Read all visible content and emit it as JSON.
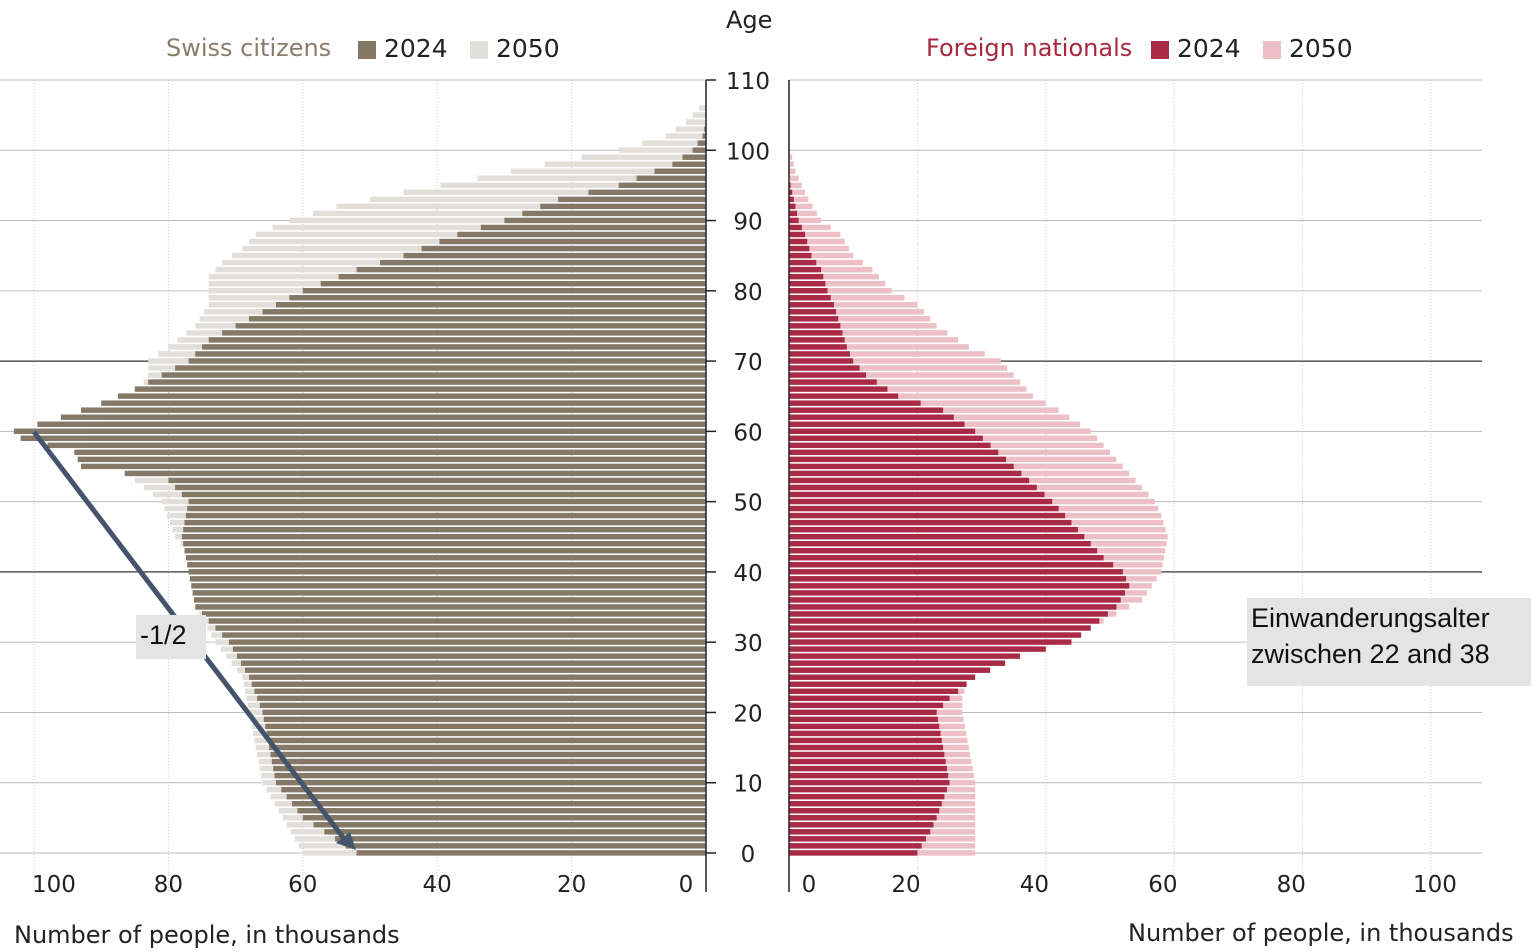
{
  "chart_data": {
    "type": "bar",
    "orientation": "horizontal",
    "center_axis_title": "Age",
    "age_ticks": [
      0,
      10,
      20,
      30,
      40,
      50,
      60,
      70,
      80,
      90,
      100,
      110
    ],
    "x_ticks": [
      0,
      20,
      40,
      60,
      80,
      100
    ],
    "xlim": [
      0,
      100
    ],
    "ylim": [
      0,
      110
    ],
    "grid": true,
    "highlight_ages": [
      40,
      70
    ],
    "panels": [
      {
        "id": "swiss",
        "title": "Swiss citizens",
        "xlabel": "Number of people, in thousands",
        "direction": "left",
        "title_color": "#8a7d6c",
        "series": [
          {
            "name": "2024",
            "color": "#857866",
            "points": [
              [
                0,
                52
              ],
              [
                5,
                60
              ],
              [
                10,
                64
              ],
              [
                15,
                65
              ],
              [
                20,
                66
              ],
              [
                25,
                68
              ],
              [
                30,
                71
              ],
              [
                35,
                76
              ],
              [
                40,
                77
              ],
              [
                45,
                78
              ],
              [
                50,
                77
              ],
              [
                53,
                80
              ],
              [
                55,
                93
              ],
              [
                57,
                94
              ],
              [
                59,
                102
              ],
              [
                60,
                103
              ],
              [
                62,
                96
              ],
              [
                64,
                90
              ],
              [
                66,
                85
              ],
              [
                68,
                81
              ],
              [
                70,
                77
              ],
              [
                73,
                74
              ],
              [
                76,
                68
              ],
              [
                80,
                60
              ],
              [
                83,
                52
              ],
              [
                85,
                45
              ],
              [
                88,
                37
              ],
              [
                90,
                30
              ],
              [
                93,
                22
              ],
              [
                95,
                13
              ],
              [
                98,
                5
              ],
              [
                100,
                2
              ],
              [
                102,
                0.5
              ],
              [
                104,
                0
              ]
            ]
          },
          {
            "name": "2050",
            "color": "#e2dfdb",
            "points": [
              [
                0,
                60
              ],
              [
                5,
                63
              ],
              [
                10,
                66
              ],
              [
                15,
                67
              ],
              [
                20,
                68
              ],
              [
                25,
                69
              ],
              [
                30,
                73
              ],
              [
                35,
                76
              ],
              [
                40,
                75
              ],
              [
                45,
                79
              ],
              [
                50,
                81
              ],
              [
                53,
                85
              ],
              [
                55,
                86
              ],
              [
                58,
                92
              ],
              [
                60,
                92
              ],
              [
                62,
                90
              ],
              [
                65,
                85
              ],
              [
                68,
                83
              ],
              [
                70,
                83
              ],
              [
                72,
                80
              ],
              [
                75,
                76
              ],
              [
                78,
                74
              ],
              [
                80,
                74
              ],
              [
                82,
                74
              ],
              [
                84,
                72
              ],
              [
                86,
                69
              ],
              [
                88,
                67
              ],
              [
                90,
                62
              ],
              [
                92,
                55
              ],
              [
                94,
                45
              ],
              [
                96,
                34
              ],
              [
                98,
                24
              ],
              [
                100,
                13
              ],
              [
                102,
                6
              ],
              [
                104,
                3
              ],
              [
                106,
                1
              ],
              [
                107,
                0
              ]
            ]
          }
        ]
      },
      {
        "id": "foreign",
        "title": "Foreign nationals",
        "xlabel": "Number of people, in thousands",
        "direction": "right",
        "title_color": "#a8283f",
        "series": [
          {
            "name": "2024",
            "color": "#a82a44",
            "points": [
              [
                0,
                20
              ],
              [
                3,
                22
              ],
              [
                5,
                23
              ],
              [
                10,
                25
              ],
              [
                15,
                24
              ],
              [
                20,
                23
              ],
              [
                22,
                25
              ],
              [
                25,
                29
              ],
              [
                28,
                36
              ],
              [
                30,
                44
              ],
              [
                32,
                47
              ],
              [
                35,
                51
              ],
              [
                38,
                53
              ],
              [
                40,
                52
              ],
              [
                42,
                49
              ],
              [
                45,
                46
              ],
              [
                50,
                41
              ],
              [
                55,
                35
              ],
              [
                60,
                29
              ],
              [
                63,
                24
              ],
              [
                65,
                17
              ],
              [
                68,
                12
              ],
              [
                70,
                10
              ],
              [
                72,
                9
              ],
              [
                75,
                8
              ],
              [
                78,
                7
              ],
              [
                80,
                6
              ],
              [
                83,
                5
              ],
              [
                85,
                3.5
              ],
              [
                88,
                2.5
              ],
              [
                90,
                1.5
              ],
              [
                92,
                1
              ],
              [
                94,
                0.5
              ],
              [
                96,
                0
              ]
            ]
          },
          {
            "name": "2050",
            "color": "#ecc0c6",
            "points": [
              [
                0,
                29
              ],
              [
                5,
                29
              ],
              [
                10,
                29
              ],
              [
                15,
                28
              ],
              [
                20,
                27
              ],
              [
                22,
                27
              ],
              [
                25,
                28
              ],
              [
                28,
                34
              ],
              [
                30,
                41
              ],
              [
                33,
                49
              ],
              [
                36,
                55
              ],
              [
                40,
                58
              ],
              [
                45,
                59
              ],
              [
                48,
                58
              ],
              [
                50,
                57
              ],
              [
                55,
                52
              ],
              [
                60,
                47
              ],
              [
                63,
                42
              ],
              [
                65,
                38
              ],
              [
                68,
                35
              ],
              [
                70,
                33
              ],
              [
                72,
                28
              ],
              [
                75,
                23
              ],
              [
                78,
                20
              ],
              [
                80,
                16
              ],
              [
                83,
                13
              ],
              [
                85,
                10
              ],
              [
                88,
                8
              ],
              [
                90,
                5
              ],
              [
                93,
                3
              ],
              [
                95,
                2
              ],
              [
                97,
                1
              ],
              [
                99,
                0.5
              ],
              [
                100,
                0
              ]
            ]
          }
        ]
      }
    ],
    "annotations": [
      {
        "text": "-1/2"
      },
      {
        "text": "Einwanderungsalter zwischen 22 and 38"
      }
    ]
  }
}
